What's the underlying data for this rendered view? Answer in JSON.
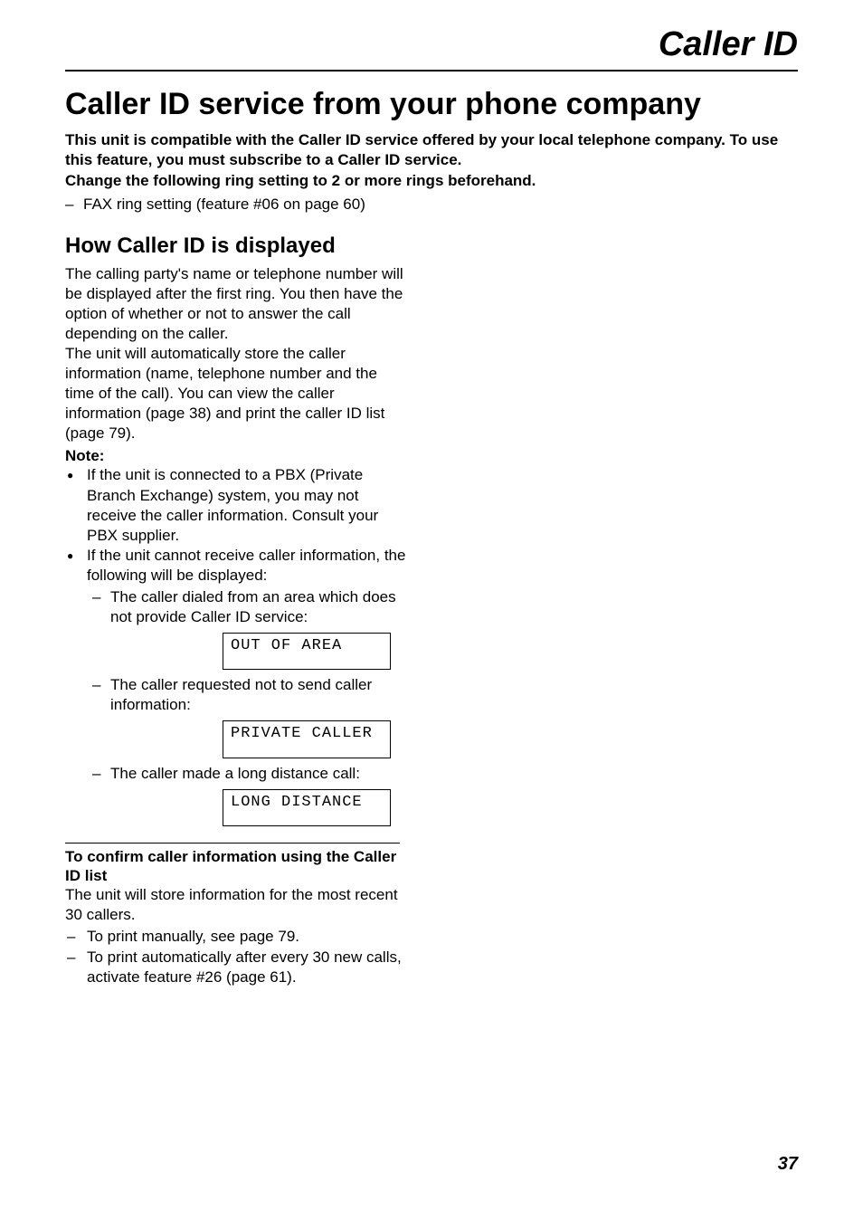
{
  "header": {
    "title": "Caller ID"
  },
  "main": {
    "title": "Caller ID service from your phone company",
    "intro_bold_lines": [
      "This unit is compatible with the Caller ID service offered by your local telephone company. To use this feature, you must subscribe to a Caller ID service.",
      "Change the following ring setting to 2 or more rings beforehand."
    ],
    "intro_list": [
      "FAX ring setting (feature #06 on page 60)"
    ]
  },
  "section": {
    "title": "How Caller ID is displayed",
    "para1": "The calling party's name or telephone number will be displayed after the first ring. You then have the option of whether or not to answer the call depending on the caller.",
    "para2": "The unit will automatically store the caller information (name, telephone number and the time of the call). You can view the caller information (page 38) and print the caller ID list (page 79).",
    "note_label": "Note:",
    "notes": [
      {
        "text": "If the unit is connected to a PBX (Private Branch Exchange) system, you may not receive the caller information. Consult your PBX supplier."
      },
      {
        "text": "If the unit cannot receive caller information, the following will be displayed:",
        "sub": [
          {
            "text": "The caller dialed from an area which does not provide Caller ID service:",
            "display": "OUT OF AREA"
          },
          {
            "text": "The caller requested not to send caller information:",
            "display": "PRIVATE CALLER"
          },
          {
            "text": "The caller made a long distance call:",
            "display": "LONG DISTANCE"
          }
        ]
      }
    ]
  },
  "confirm": {
    "title": "To confirm caller information using the Caller ID list",
    "para": "The unit will store information for the most recent 30 callers.",
    "list": [
      "To print manually, see page 79.",
      "To print automatically after every 30 new calls, activate feature #26 (page 61)."
    ]
  },
  "page_number": "37"
}
